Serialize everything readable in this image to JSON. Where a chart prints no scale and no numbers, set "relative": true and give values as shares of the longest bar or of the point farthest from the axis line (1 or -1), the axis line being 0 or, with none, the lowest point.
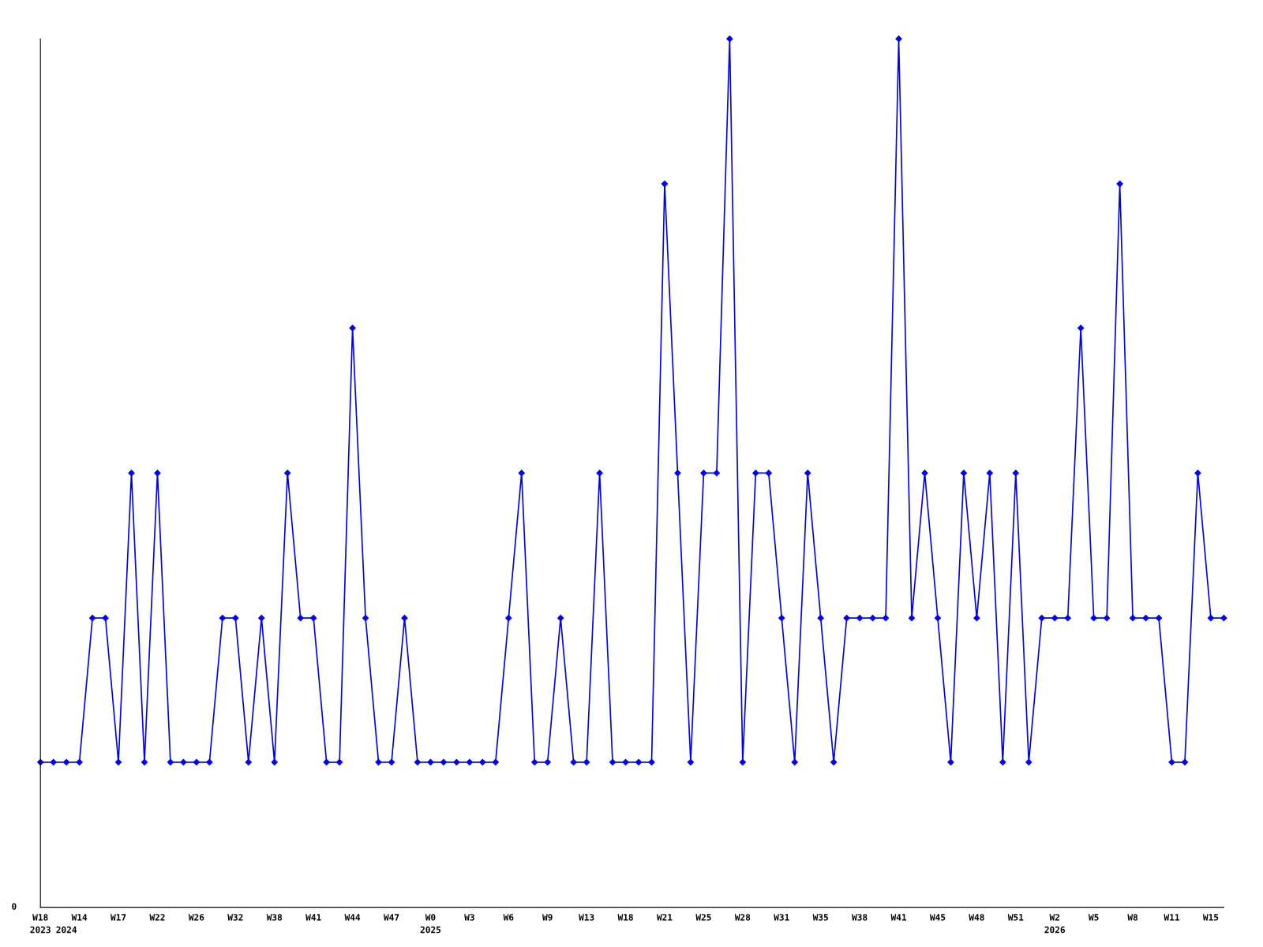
{
  "chart_data": {
    "type": "line",
    "relative": true,
    "marker": "diamond",
    "line_style": "solid",
    "grid": false,
    "legend": false,
    "categories": [
      "W18\n2023",
      null,
      "\n2024",
      "W14",
      null,
      null,
      "W17",
      null,
      null,
      "W22",
      null,
      null,
      "W26",
      null,
      null,
      "W32",
      null,
      null,
      "W38",
      null,
      null,
      "W41",
      null,
      null,
      "W44",
      null,
      null,
      "W47",
      null,
      null,
      "W0\n2025",
      null,
      null,
      "W3",
      null,
      null,
      "W6",
      null,
      null,
      "W9",
      null,
      null,
      "W13",
      null,
      null,
      "W18",
      null,
      null,
      "W21",
      null,
      null,
      "W25",
      null,
      null,
      "W28",
      null,
      null,
      "W31",
      null,
      null,
      "W35",
      null,
      null,
      "W38",
      null,
      null,
      "W41",
      null,
      null,
      "W45",
      null,
      null,
      "W48",
      null,
      null,
      "W51",
      null,
      null,
      "W2\n2026",
      null,
      null,
      "W5",
      null,
      null,
      "W8",
      null,
      null,
      "W11",
      null,
      null,
      "W15",
      null
    ],
    "series": [
      {
        "color": "#0000ff",
        "values": [
          0.167,
          0.167,
          0.167,
          0.167,
          0.333,
          0.333,
          0.167,
          0.5,
          0.167,
          0.5,
          0.167,
          0.167,
          0.167,
          0.167,
          0.333,
          0.333,
          0.167,
          0.333,
          0.167,
          0.5,
          0.333,
          0.333,
          0.167,
          0.167,
          0.667,
          0.333,
          0.167,
          0.167,
          0.333,
          0.167,
          0.167,
          0.167,
          0.167,
          0.167,
          0.167,
          0.167,
          0.333,
          0.5,
          0.167,
          0.167,
          0.333,
          0.167,
          0.167,
          0.5,
          0.167,
          0.167,
          0.167,
          0.167,
          0.833,
          0.5,
          0.167,
          0.5,
          0.5,
          1,
          0.167,
          0.5,
          0.5,
          0.333,
          0.167,
          0.5,
          0.333,
          0.167,
          0.333,
          0.333,
          0.333,
          0.333,
          1,
          0.333,
          0.5,
          0.333,
          0.167,
          0.5,
          0.333,
          0.5,
          0.167,
          0.5,
          0.167,
          0.333,
          0.333,
          0.333,
          0.667,
          0.333,
          0.333,
          0.833,
          0.333,
          0.333,
          0.333,
          0.167,
          0.167,
          0.5,
          0.333,
          0.333
        ]
      }
    ],
    "annotations": [
      "0"
    ]
  }
}
